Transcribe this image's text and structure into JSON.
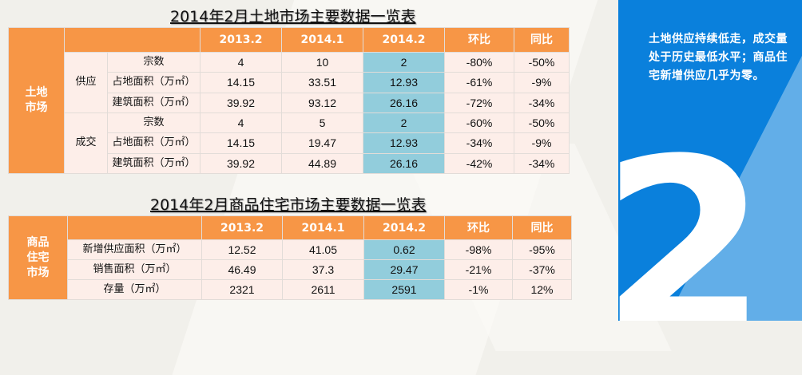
{
  "colors": {
    "header": "#F79646",
    "cell": "#FDEEE9",
    "highlight": "#92CDDC",
    "panel": "#0A80DC",
    "panel_light": "#62AEE8"
  },
  "land": {
    "title": "2014年2月土地市场主要数据一览表",
    "side_label": "土地\n市场",
    "headers": [
      "2013.2",
      "2014.1",
      "2014.2",
      "环比",
      "同比"
    ],
    "groups": [
      {
        "label": "供应",
        "rows": [
          {
            "metric": "宗数",
            "values": [
              "4",
              "10",
              "2",
              "-80%",
              "-50%"
            ]
          },
          {
            "metric": "占地面积（万㎡）",
            "values": [
              "14.15",
              "33.51",
              "12.93",
              "-61%",
              "-9%"
            ]
          },
          {
            "metric": "建筑面积（万㎡）",
            "values": [
              "39.92",
              "93.12",
              "26.16",
              "-72%",
              "-34%"
            ]
          }
        ]
      },
      {
        "label": "成交",
        "rows": [
          {
            "metric": "宗数",
            "values": [
              "4",
              "5",
              "2",
              "-60%",
              "-50%"
            ]
          },
          {
            "metric": "占地面积（万㎡）",
            "values": [
              "14.15",
              "19.47",
              "12.93",
              "-34%",
              "-9%"
            ]
          },
          {
            "metric": "建筑面积（万㎡）",
            "values": [
              "39.92",
              "44.89",
              "26.16",
              "-42%",
              "-34%"
            ]
          }
        ]
      }
    ]
  },
  "housing": {
    "title": "2014年2月商品住宅市场主要数据一览表",
    "side_label": "商品\n住宅\n市场",
    "headers": [
      "2013.2",
      "2014.1",
      "2014.2",
      "环比",
      "同比"
    ],
    "rows": [
      {
        "metric": "新增供应面积（万㎡）",
        "values": [
          "12.52",
          "41.05",
          "0.62",
          "-98%",
          "-95%"
        ]
      },
      {
        "metric": "销售面积（万㎡）",
        "values": [
          "46.49",
          "37.3",
          "29.47",
          "-21%",
          "-37%"
        ]
      },
      {
        "metric": "存量（万㎡）",
        "values": [
          "2321",
          "2611",
          "2591",
          "-1%",
          "12%"
        ]
      }
    ]
  },
  "panel": {
    "note": "土地供应持续低走，成交量处于历史最低水平；商品住宅新增供应几乎为零。",
    "number": "2"
  }
}
